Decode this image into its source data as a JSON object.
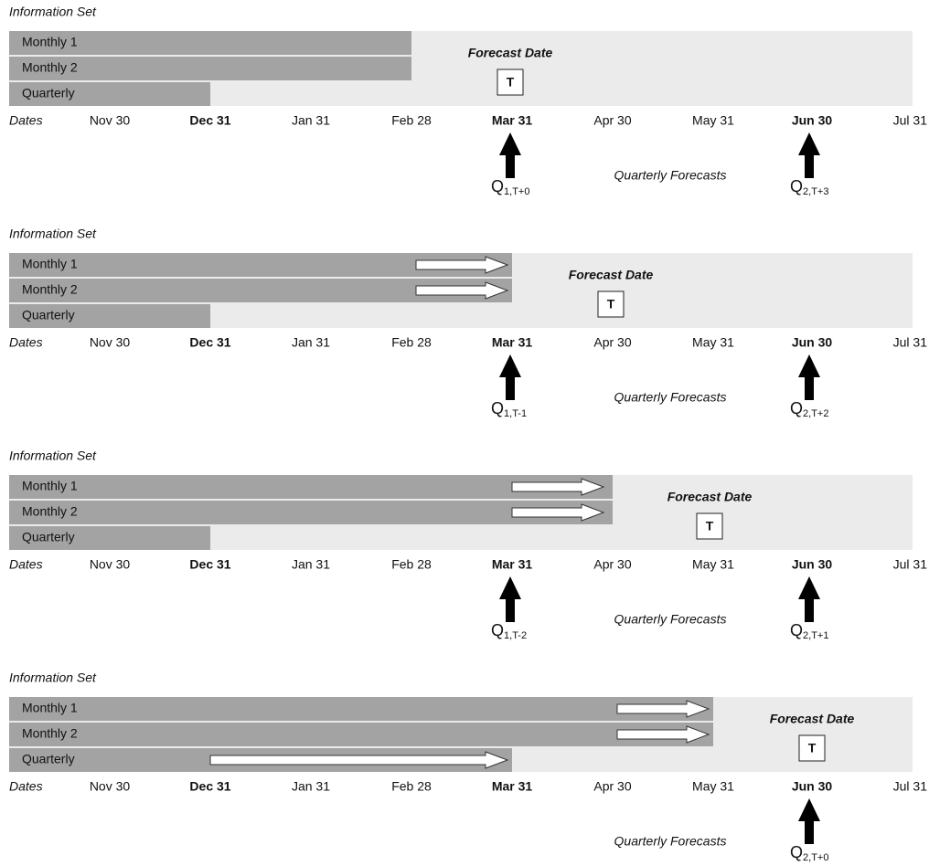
{
  "panels": [
    {
      "info_label": "Information Set",
      "rows": [
        "Monthly 1",
        "Monthly 2",
        "Quarterly"
      ],
      "dates": [
        "Dates",
        "Nov 30",
        "Dec 31",
        "Jan 31",
        "Feb 28",
        "Mar 31",
        "Apr 30",
        "May 31",
        "Jun 30",
        "Jul 31"
      ],
      "forecast_date": "Forecast Date",
      "t_box": "T",
      "quarterly_forecasts": "Quarterly Forecasts",
      "q_labels": [
        {
          "main": "Q",
          "sub": "1,T+0"
        },
        {
          "main": "Q",
          "sub": "2,T+3"
        }
      ]
    },
    {
      "info_label": "Information Set",
      "rows": [
        "Monthly 1",
        "Monthly 2",
        "Quarterly"
      ],
      "dates": [
        "Dates",
        "Nov 30",
        "Dec 31",
        "Jan 31",
        "Feb 28",
        "Mar 31",
        "Apr 30",
        "May 31",
        "Jun 30",
        "Jul 31"
      ],
      "forecast_date": "Forecast Date",
      "t_box": "T",
      "quarterly_forecasts": "Quarterly Forecasts",
      "q_labels": [
        {
          "main": "Q",
          "sub": "1,T-1"
        },
        {
          "main": "Q",
          "sub": "2,T+2"
        }
      ]
    },
    {
      "info_label": "Information Set",
      "rows": [
        "Monthly 1",
        "Monthly 2",
        "Quarterly"
      ],
      "dates": [
        "Dates",
        "Nov 30",
        "Dec 31",
        "Jan 31",
        "Feb 28",
        "Mar 31",
        "Apr 30",
        "May 31",
        "Jun 30",
        "Jul 31"
      ],
      "forecast_date": "Forecast Date",
      "t_box": "T",
      "quarterly_forecasts": "Quarterly Forecasts",
      "q_labels": [
        {
          "main": "Q",
          "sub": "1,T-2"
        },
        {
          "main": "Q",
          "sub": "2,T+1"
        }
      ]
    },
    {
      "info_label": "Information Set",
      "rows": [
        "Monthly 1",
        "Monthly 2",
        "Quarterly"
      ],
      "dates": [
        "Dates",
        "Nov 30",
        "Dec 31",
        "Jan 31",
        "Feb 28",
        "Mar 31",
        "Apr 30",
        "May 31",
        "Jun 30",
        "Jul 31"
      ],
      "forecast_date": "Forecast Date",
      "t_box": "T",
      "quarterly_forecasts": "Quarterly Forecasts",
      "q_labels": [
        {
          "main": "Q",
          "sub": "2,T+0"
        }
      ]
    }
  ]
}
